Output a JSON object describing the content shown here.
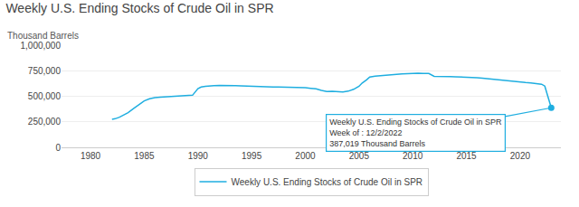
{
  "chart_data": {
    "type": "line",
    "title": "Weekly U.S. Ending Stocks of Crude Oil in SPR",
    "ylabel": "Thousand Barrels",
    "x": [
      1982.0,
      1982.3,
      1982.7,
      1983.0,
      1983.5,
      1984.0,
      1984.5,
      1985.0,
      1985.5,
      1986.0,
      1986.5,
      1987.0,
      1987.5,
      1988.0,
      1988.5,
      1989.0,
      1989.5,
      1990.0,
      1990.3,
      1990.7,
      1991.0,
      1991.5,
      1992.0,
      1992.5,
      1993.0,
      1993.5,
      1994.0,
      1994.5,
      1995.0,
      1995.5,
      1996.0,
      1996.5,
      1997.0,
      1997.5,
      1998.0,
      1998.5,
      1999.0,
      1999.5,
      2000.0,
      2000.5,
      2001.0,
      2001.5,
      2002.0,
      2002.5,
      2003.0,
      2003.5,
      2004.0,
      2004.5,
      2005.0,
      2005.3,
      2005.7,
      2006.0,
      2006.5,
      2007.0,
      2007.5,
      2008.0,
      2008.5,
      2009.0,
      2009.5,
      2010.0,
      2010.2,
      2010.5,
      2011.0,
      2011.5,
      2012.0,
      2012.5,
      2013.0,
      2013.5,
      2014.0,
      2014.5,
      2015.0,
      2015.5,
      2016.0,
      2016.5,
      2017.0,
      2017.5,
      2018.0,
      2018.5,
      2019.0,
      2019.5,
      2020.0,
      2020.5,
      2021.0,
      2021.3,
      2021.7,
      2022.0,
      2022.3,
      2022.9
    ],
    "series": [
      {
        "name": "Weekly U.S. Ending Stocks of Crude Oil in SPR",
        "color": "#1faee0",
        "values": [
          275000,
          280000,
          295000,
          310000,
          340000,
          380000,
          420000,
          455000,
          475000,
          487000,
          492000,
          495000,
          498000,
          500000,
          503000,
          507000,
          510000,
          575000,
          590000,
          598000,
          602000,
          605000,
          607000,
          608000,
          607000,
          605000,
          602000,
          599000,
          597000,
          595000,
          593000,
          591000,
          590000,
          591000,
          590000,
          588000,
          587000,
          586000,
          584000,
          578000,
          572000,
          558000,
          546000,
          548000,
          545000,
          543000,
          550000,
          568000,
          598000,
          630000,
          660000,
          688000,
          697000,
          702000,
          708000,
          712000,
          715000,
          718000,
          721000,
          726000,
          727000,
          726000,
          724000,
          723000,
          695000,
          692000,
          694000,
          692000,
          691000,
          690000,
          687000,
          685000,
          682000,
          678000,
          672000,
          667000,
          663000,
          655000,
          648000,
          643000,
          637000,
          634000,
          631000,
          629000,
          626000,
          618000,
          600000,
          387019
        ]
      }
    ],
    "xlim": [
      1977.3,
      2023.8
    ],
    "xticks": [
      1980,
      1985,
      1990,
      1995,
      2000,
      2005,
      2010,
      2015,
      2020
    ],
    "ylim": [
      0,
      1000000
    ],
    "yticks": [
      0,
      {
        "value": 250000,
        "label": "250,000"
      },
      {
        "value": 500000,
        "label": "500,000"
      },
      {
        "value": 750000,
        "label": "750,000"
      },
      {
        "value": 1000000,
        "label": "1,000,000"
      }
    ],
    "grid": true,
    "legend": "bottom",
    "annotations": [
      {
        "text": "Weekly U.S. Ending Stocks of Crude Oil in SPR\nWeek of : 12/2/2022\n387,019 Thousand Barrels",
        "x": 2022.9,
        "y": 387019
      }
    ]
  }
}
